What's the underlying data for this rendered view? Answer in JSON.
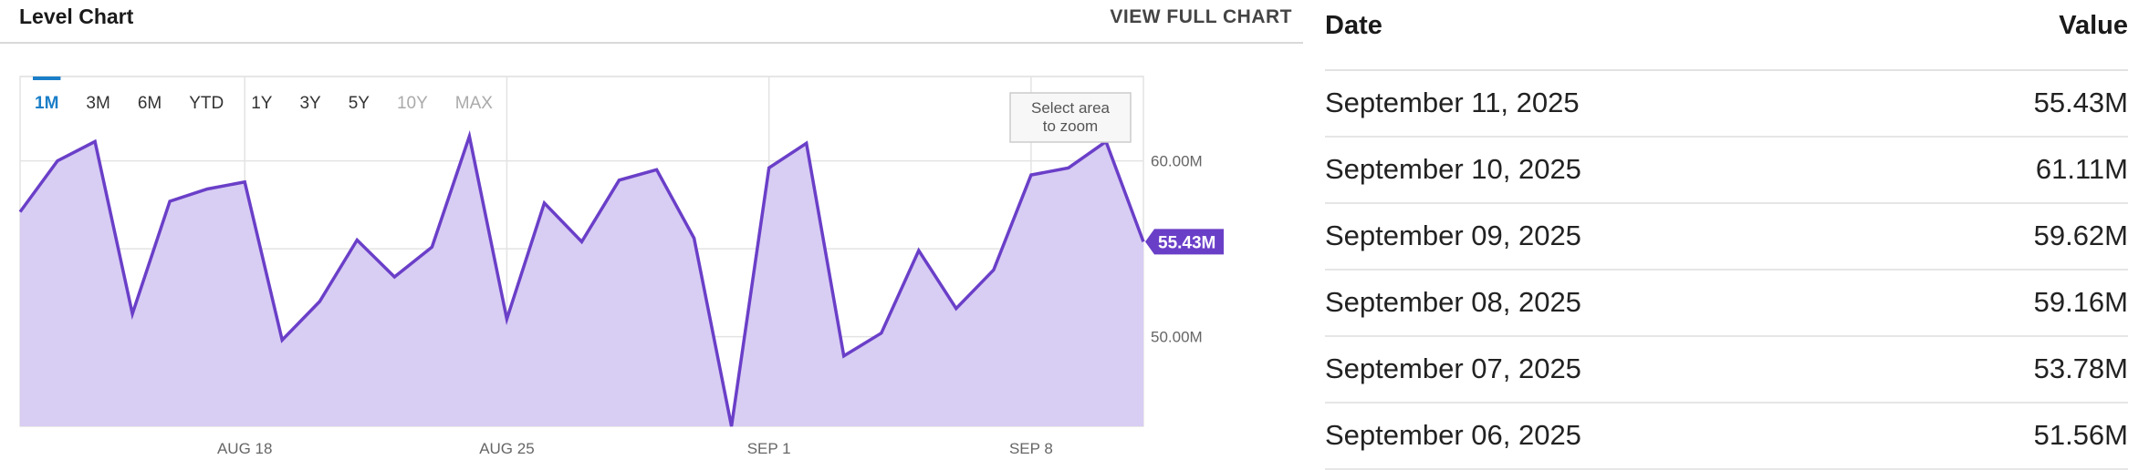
{
  "chart_header": {
    "title": "Level Chart",
    "view_full_label": "VIEW FULL CHART"
  },
  "range_buttons": [
    {
      "label": "1M",
      "state": "active"
    },
    {
      "label": "3M",
      "state": "enabled"
    },
    {
      "label": "6M",
      "state": "enabled"
    },
    {
      "label": "YTD",
      "state": "enabled"
    },
    {
      "label": "1Y",
      "state": "enabled"
    },
    {
      "label": "3Y",
      "state": "enabled"
    },
    {
      "label": "5Y",
      "state": "enabled"
    },
    {
      "label": "10Y",
      "state": "disabled"
    },
    {
      "label": "MAX",
      "state": "disabled"
    }
  ],
  "zoom_hint": [
    "Select area",
    "to zoom"
  ],
  "colors": {
    "line": "#6a3fc8",
    "fill": "#d8cdf3",
    "accent": "#1a7ec8",
    "callout": "#6a3fc8",
    "grid": "#e3e3e3",
    "disabled": "#aaaaaa",
    "enabled": "#333333"
  },
  "chart_data": {
    "type": "area",
    "title": "Level Chart",
    "x": [
      "2025-08-12",
      "2025-08-13",
      "2025-08-14",
      "2025-08-15",
      "2025-08-16",
      "2025-08-17",
      "2025-08-18",
      "2025-08-19",
      "2025-08-20",
      "2025-08-21",
      "2025-08-22",
      "2025-08-23",
      "2025-08-24",
      "2025-08-25",
      "2025-08-26",
      "2025-08-27",
      "2025-08-28",
      "2025-08-29",
      "2025-08-30",
      "2025-08-31",
      "2025-09-01",
      "2025-09-02",
      "2025-09-03",
      "2025-09-04",
      "2025-09-05",
      "2025-09-06",
      "2025-09-07",
      "2025-09-08",
      "2025-09-09",
      "2025-09-10",
      "2025-09-11"
    ],
    "series": [
      {
        "values": [
          57.1,
          60.0,
          61.1,
          51.3,
          57.7,
          58.4,
          58.8,
          49.8,
          52.0,
          55.5,
          53.4,
          55.1,
          61.4,
          51.0,
          57.6,
          55.4,
          58.9,
          59.5,
          55.6,
          44.9,
          59.6,
          61.0,
          48.9,
          50.2,
          54.9,
          51.6,
          53.8,
          59.2,
          59.6,
          61.1,
          55.4
        ]
      }
    ],
    "x_ticks": [
      {
        "x": "2025-08-18",
        "label": "AUG 18"
      },
      {
        "x": "2025-08-25",
        "label": "AUG 25"
      },
      {
        "x": "2025-09-01",
        "label": "SEP 1"
      },
      {
        "x": "2025-09-08",
        "label": "SEP 8"
      }
    ],
    "y_ticks": [
      {
        "value": 60,
        "label": "60.00M"
      },
      {
        "value": 50,
        "label": "50.00M"
      }
    ],
    "ylim": [
      44.9,
      64.8
    ],
    "unit": "M",
    "last_value_label": "55.43M",
    "grid": true,
    "legend": "none"
  },
  "table": {
    "headers": {
      "date": "Date",
      "value": "Value"
    },
    "rows": [
      {
        "date": "September 11, 2025",
        "value": "55.43M"
      },
      {
        "date": "September 10, 2025",
        "value": "61.11M"
      },
      {
        "date": "September 09, 2025",
        "value": "59.62M"
      },
      {
        "date": "September 08, 2025",
        "value": "59.16M"
      },
      {
        "date": "September 07, 2025",
        "value": "53.78M"
      },
      {
        "date": "September 06, 2025",
        "value": "51.56M"
      }
    ]
  }
}
